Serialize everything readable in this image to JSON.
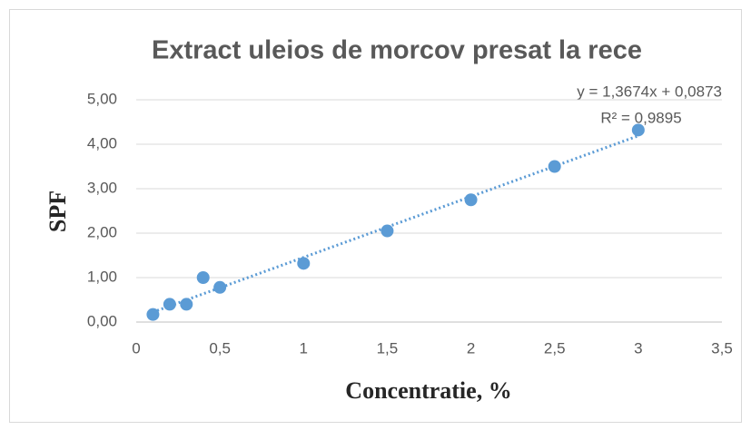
{
  "chart_data": {
    "type": "scatter",
    "title": "Extract uleios de morcov presat la rece",
    "x_label": "Concentratie, %",
    "y_label": "SPF",
    "color": "#5b9bd5",
    "x": [
      0.1,
      0.2,
      0.3,
      0.4,
      0.5,
      1,
      1.5,
      2,
      2.5,
      3
    ],
    "values": [
      0.17,
      0.4,
      0.4,
      1.0,
      0.78,
      1.32,
      2.05,
      2.75,
      3.5,
      4.32
    ],
    "xlim": [
      0,
      3.5
    ],
    "xticks": [
      0,
      {
        "value": 0.5,
        "label": "0,5"
      },
      1,
      {
        "value": 1.5,
        "label": "1,5"
      },
      2,
      {
        "value": 2.5,
        "label": "2,5"
      },
      3,
      {
        "value": 3.5,
        "label": "3,5"
      }
    ],
    "ylim": [
      0,
      5
    ],
    "yticks": [
      {
        "value": 0,
        "label": "0,00"
      },
      {
        "value": 1,
        "label": "1,00"
      },
      {
        "value": 2,
        "label": "2,00"
      },
      {
        "value": 3,
        "label": "3,00"
      },
      {
        "value": 4,
        "label": "4,00"
      },
      {
        "value": 5,
        "label": "5,00"
      }
    ],
    "grid": true,
    "trendline": {
      "slope": 1.3674,
      "intercept": 0.0873,
      "equation": "y = 1,3674x + 0,0873",
      "r2": "R² = 0,9895"
    }
  }
}
